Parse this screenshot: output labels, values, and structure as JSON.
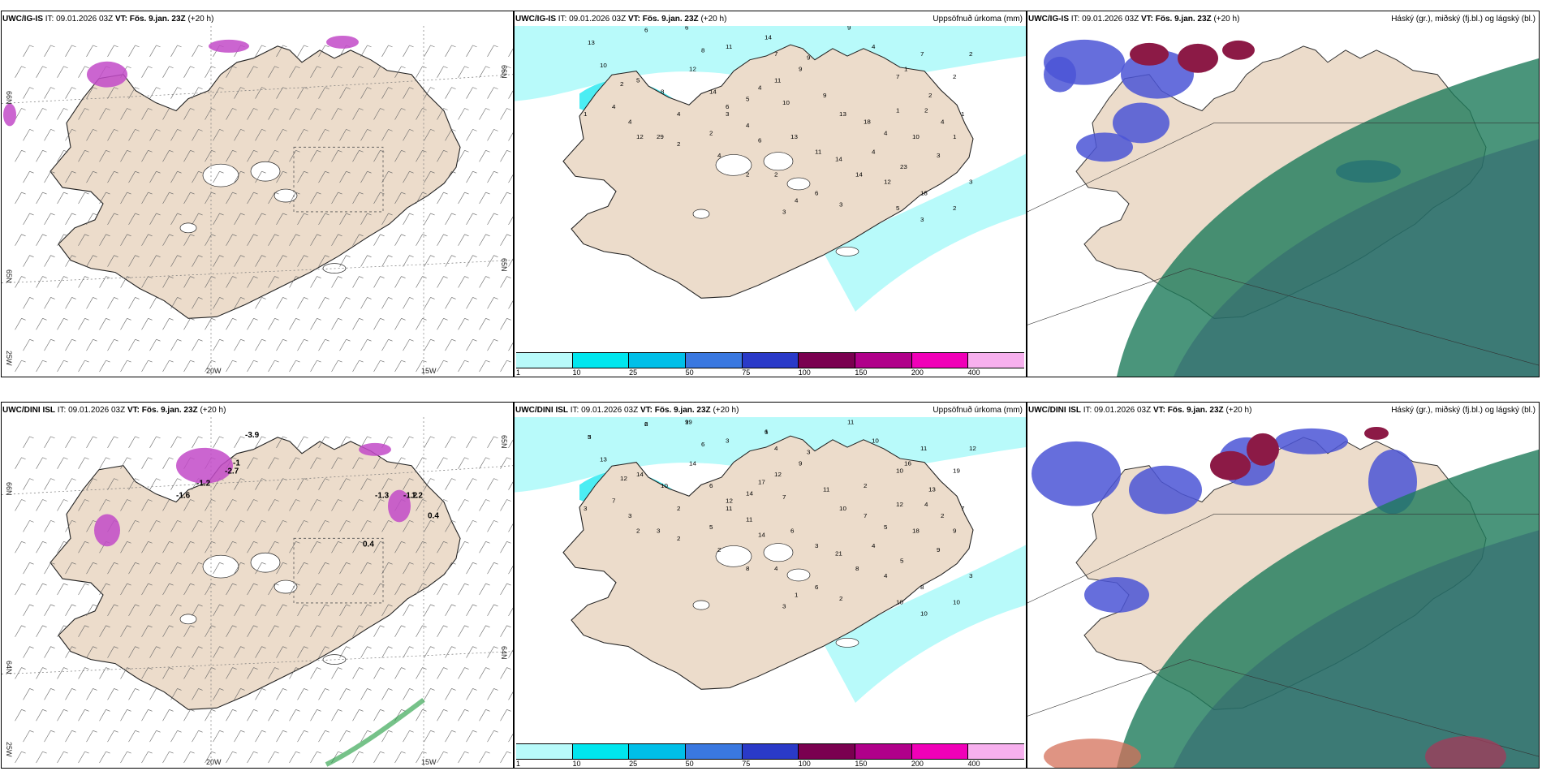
{
  "panels": {
    "p1": {
      "model": "UWC/IG-IS",
      "it": "IT: 09.01.2026 03Z",
      "vt": "VT: Fös. 9.jan. 23Z",
      "lead": "(+20 h)",
      "right": ""
    },
    "p2": {
      "model": "UWC/IG-IS",
      "it": "IT: 09.01.2026 03Z",
      "vt": "VT: Fös. 9.jan. 23Z",
      "lead": "(+20 h)",
      "right": "Uppsöfnuð úrkoma (mm)"
    },
    "p3": {
      "model": "UWC/IG-IS",
      "it": "IT: 09.01.2026 03Z",
      "vt": "VT: Fös. 9.jan. 23Z",
      "lead": "(+20 h)",
      "right": "Háský (gr.), miðský (fj.bl.) og lágský (bl.)"
    },
    "p4": {
      "model": "UWC/DINI ISL",
      "it": "IT: 09.01.2026 03Z",
      "vt": "VT: Fös. 9.jan. 23Z",
      "lead": "(+20 h)",
      "right": ""
    },
    "p5": {
      "model": "UWC/DINI ISL",
      "it": "IT: 09.01.2026 03Z",
      "vt": "VT: Fös. 9.jan. 23Z",
      "lead": "(+20 h)",
      "right": "Uppsöfnuð úrkoma (mm)"
    },
    "p6": {
      "model": "UWC/DINI ISL",
      "it": "IT: 09.01.2026 03Z",
      "vt": "VT: Fös. 9.jan. 23Z",
      "lead": "(+20 h)",
      "right": "Háský (gr.), miðský (fj.bl.) og lágský (bl.)"
    }
  },
  "grid_labels": {
    "lat66": "66N",
    "lat65": "65N",
    "lat64": "64N",
    "lon25": "25W",
    "lon20": "20W",
    "lon15": "15W"
  },
  "colorbar": {
    "ticks": [
      "1",
      "10",
      "25",
      "50",
      "75",
      "100",
      "150",
      "200",
      "400"
    ],
    "colors": [
      "#b8fafa",
      "#00e6ee",
      "#00bfe8",
      "#3a78e0",
      "#2a3ac8",
      "#7a0050",
      "#b0008a",
      "#f000b8",
      "#f7b0ee"
    ]
  },
  "precip_labels_top": [
    "13",
    "6",
    "6",
    "14",
    "9",
    "9",
    "4",
    "7",
    "7",
    "10",
    "5",
    "8",
    "12",
    "14",
    "6",
    "5",
    "4",
    "11",
    "10",
    "9",
    "9",
    "13",
    "18",
    "4",
    "1",
    "10",
    "2",
    "14",
    "14",
    "4",
    "12",
    "23",
    "18",
    "3",
    "1",
    "1",
    "2",
    "3",
    "4",
    "6",
    "13",
    "11",
    "2",
    "2",
    "1",
    "2",
    "2",
    "4",
    "4",
    "2",
    "5",
    "3",
    "2",
    "3",
    "3",
    "6",
    "4",
    "3",
    "2",
    "4",
    "1",
    "4",
    "29",
    "7",
    "11",
    "8",
    "12",
    "2",
    "4"
  ],
  "precip_labels_bottom": [
    "3",
    "6",
    "9",
    "1",
    "3",
    "11",
    "10",
    "10",
    "11",
    "13",
    "14",
    "10",
    "14",
    "6",
    "12",
    "14",
    "17",
    "12",
    "7",
    "9",
    "11",
    "10",
    "7",
    "5",
    "12",
    "18",
    "13",
    "21",
    "8",
    "4",
    "4",
    "5",
    "8",
    "9",
    "9",
    "7",
    "5",
    "11",
    "11",
    "14",
    "6",
    "3",
    "4",
    "8",
    "16",
    "19",
    "12",
    "2",
    "7",
    "12",
    "10",
    "10",
    "10",
    "3",
    "2",
    "6",
    "1",
    "3",
    "4",
    "2",
    "3",
    "3",
    "3",
    "4",
    "3",
    "6",
    "2",
    "2",
    "2",
    "2",
    "5",
    "2",
    "19",
    "6"
  ],
  "temp_labels_bottom": [
    "-3.9",
    "-1",
    "-1.6",
    "-2.7",
    "-1.2",
    "0.4",
    "1.2",
    "-1.2",
    "-1.3",
    "0.4"
  ],
  "colors": {
    "land": "#ecdccb",
    "sea": "#ffffff",
    "coast": "#222222"
  }
}
